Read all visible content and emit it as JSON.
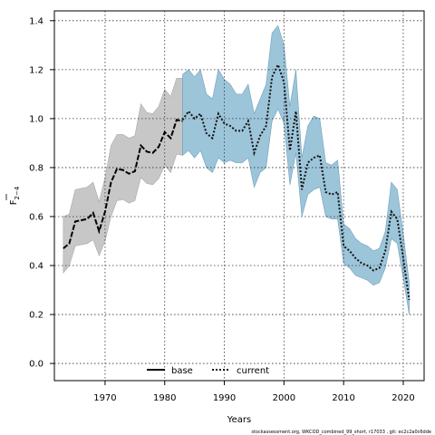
{
  "chart_data": {
    "type": "line",
    "xlabel": "Years",
    "ylabel_main": "F",
    "ylabel_sub": "2−4",
    "xlim": [
      1961.5,
      2023.5
    ],
    "ylim": [
      -0.07,
      1.44
    ],
    "x_ticks": [
      1970,
      1980,
      1990,
      2000,
      2010,
      2020
    ],
    "y_ticks": [
      0.0,
      0.2,
      0.4,
      0.6,
      0.8,
      1.0,
      1.2,
      1.4
    ],
    "x_tick_labels": [
      "1970",
      "1980",
      "1990",
      "2000",
      "2010",
      "2020"
    ],
    "y_tick_labels": [
      "0.0",
      "0.2",
      "0.4",
      "0.6",
      "0.8",
      "1.0",
      "1.2",
      "1.4"
    ],
    "grid": true,
    "legend_position": "bottom-center",
    "colors": {
      "base": "#000000",
      "base_band": "#bdbdbd",
      "current": "#111111",
      "current_band": "#8cbbd3"
    },
    "series": [
      {
        "name": "base",
        "x": [
          1963,
          1964,
          1965,
          1966,
          1967,
          1968,
          1969,
          1970,
          1971,
          1972,
          1973,
          1974,
          1975,
          1976,
          1977,
          1978,
          1979,
          1980,
          1981,
          1982,
          1983
        ],
        "y": [
          0.47,
          0.49,
          0.58,
          0.585,
          0.59,
          0.615,
          0.54,
          0.62,
          0.74,
          0.795,
          0.79,
          0.775,
          0.785,
          0.89,
          0.865,
          0.86,
          0.885,
          0.945,
          0.92,
          0.995,
          0.99
        ],
        "lower": [
          0.37,
          0.4,
          0.48,
          0.485,
          0.49,
          0.505,
          0.44,
          0.5,
          0.6,
          0.665,
          0.67,
          0.655,
          0.665,
          0.76,
          0.735,
          0.73,
          0.755,
          0.81,
          0.78,
          0.855,
          0.85
        ],
        "upper": [
          0.6,
          0.61,
          0.71,
          0.715,
          0.72,
          0.74,
          0.66,
          0.76,
          0.89,
          0.935,
          0.935,
          0.92,
          0.93,
          1.06,
          1.025,
          1.02,
          1.05,
          1.12,
          1.09,
          1.165,
          1.165
        ]
      },
      {
        "name": "current",
        "x": [
          1983,
          1984,
          1985,
          1986,
          1987,
          1988,
          1989,
          1990,
          1991,
          1992,
          1993,
          1994,
          1995,
          1996,
          1997,
          1998,
          1999,
          2000,
          2001,
          2002,
          2003,
          2004,
          2005,
          2006,
          2007,
          2008,
          2009,
          2010,
          2011,
          2012,
          2013,
          2014,
          2015,
          2016,
          2017,
          2018,
          2019,
          2020,
          2021
        ],
        "y": [
          0.995,
          1.03,
          1.0,
          1.02,
          0.94,
          0.92,
          1.02,
          0.98,
          0.97,
          0.95,
          0.95,
          0.99,
          0.86,
          0.93,
          0.97,
          1.17,
          1.22,
          1.15,
          0.87,
          1.03,
          0.71,
          0.82,
          0.84,
          0.85,
          0.7,
          0.69,
          0.7,
          0.48,
          0.46,
          0.43,
          0.41,
          0.4,
          0.38,
          0.39,
          0.46,
          0.62,
          0.59,
          0.43,
          0.26
        ],
        "lower": [
          0.85,
          0.87,
          0.84,
          0.87,
          0.8,
          0.78,
          0.84,
          0.82,
          0.83,
          0.82,
          0.82,
          0.84,
          0.72,
          0.78,
          0.8,
          0.99,
          1.04,
          0.98,
          0.73,
          0.86,
          0.6,
          0.69,
          0.71,
          0.72,
          0.6,
          0.59,
          0.59,
          0.41,
          0.39,
          0.36,
          0.35,
          0.34,
          0.32,
          0.33,
          0.39,
          0.51,
          0.49,
          0.35,
          0.2
        ],
        "upper": [
          1.18,
          1.2,
          1.17,
          1.2,
          1.1,
          1.08,
          1.2,
          1.16,
          1.14,
          1.1,
          1.1,
          1.14,
          1.02,
          1.08,
          1.14,
          1.35,
          1.38,
          1.3,
          1.05,
          1.2,
          0.84,
          0.97,
          1.01,
          1.0,
          0.82,
          0.81,
          0.83,
          0.57,
          0.55,
          0.51,
          0.49,
          0.48,
          0.46,
          0.47,
          0.54,
          0.74,
          0.71,
          0.53,
          0.33
        ]
      }
    ]
  },
  "legend": {
    "base_label": "base",
    "current_label": "current"
  },
  "footer": {
    "note": "stockassessment.org, WKCOD_combined_99_short, r17033 , git: ec2c2a0c6dde"
  }
}
